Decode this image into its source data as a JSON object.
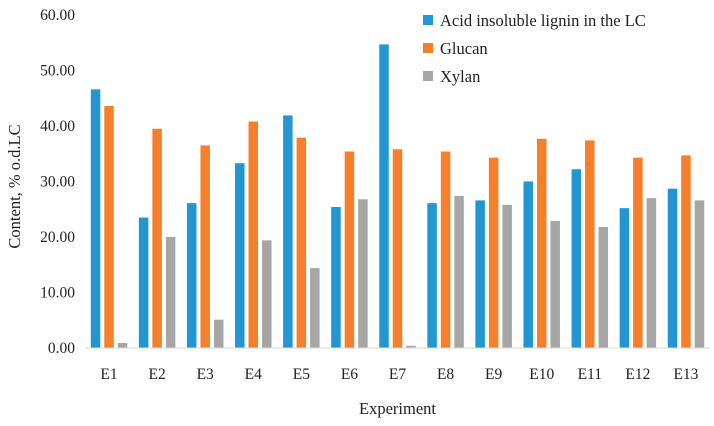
{
  "chart_data": {
    "type": "bar",
    "title": "",
    "xlabel": "Experiment",
    "ylabel": "Content, % o.d.LC",
    "ylim": [
      0,
      60
    ],
    "ytick_step": 10,
    "ytick_labels": [
      "0.00",
      "10.00",
      "20.00",
      "30.00",
      "40.00",
      "50.00",
      "60.00"
    ],
    "grid": false,
    "legend_position": "top-right",
    "categories": [
      "E1",
      "E2",
      "E3",
      "E4",
      "E5",
      "E6",
      "E7",
      "E8",
      "E9",
      "E10",
      "E11",
      "E12",
      "E13"
    ],
    "series": [
      {
        "name": "Acid insoluble lignin in the LC",
        "color": "#2196d3",
        "values": [
          46.6,
          23.5,
          26.1,
          33.3,
          41.9,
          25.4,
          54.7,
          26.1,
          26.6,
          30.0,
          32.2,
          25.2,
          28.7
        ]
      },
      {
        "name": "Glucan",
        "color": "#f57f2a",
        "values": [
          43.6,
          39.5,
          36.5,
          40.8,
          37.9,
          35.4,
          35.8,
          35.4,
          34.3,
          37.7,
          37.4,
          34.3,
          34.7
        ]
      },
      {
        "name": "Xylan",
        "color": "#a6a6a6",
        "values": [
          0.9,
          20.0,
          5.1,
          19.4,
          14.4,
          26.8,
          0.4,
          27.4,
          25.8,
          22.9,
          21.8,
          27.0,
          26.6
        ]
      }
    ]
  }
}
